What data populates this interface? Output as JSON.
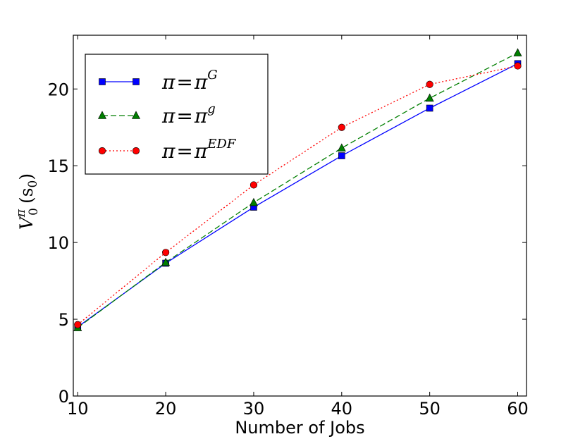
{
  "chart_data": {
    "type": "line",
    "title": "",
    "xlabel": "Number of Jobs",
    "ylabel": {
      "base": "V",
      "sup": "π",
      "sub": "0",
      "arg": "(s",
      "arg_sub": "0",
      "close": ")"
    },
    "xlim": [
      9.5,
      61
    ],
    "ylim": [
      0,
      23.5
    ],
    "x_ticks": [
      10,
      20,
      30,
      40,
      50,
      60
    ],
    "y_ticks": [
      0,
      5,
      10,
      15,
      20
    ],
    "x_tick_labels": [
      "10",
      "20",
      "30",
      "40",
      "50",
      "60"
    ],
    "y_tick_labels": [
      "0",
      "5",
      "10",
      "15",
      "20"
    ],
    "grid": false,
    "legend_position": "top-left",
    "x": [
      10,
      20,
      30,
      40,
      50,
      60
    ],
    "series": [
      {
        "legend": {
          "lhs": "π",
          "eq": "=",
          "rhs": "π",
          "sup": "G"
        },
        "values": [
          4.5,
          8.65,
          12.3,
          15.65,
          18.75,
          21.65
        ],
        "color": "#0000ff",
        "line_style": "solid",
        "marker": "square"
      },
      {
        "legend": {
          "lhs": "π",
          "eq": "=",
          "rhs": "π",
          "sup": "g"
        },
        "values": [
          4.45,
          8.7,
          12.6,
          16.15,
          19.4,
          22.35
        ],
        "color": "#007f00",
        "line_style": "dashed",
        "marker": "triangle"
      },
      {
        "legend": {
          "lhs": "π",
          "eq": "=",
          "rhs": "π",
          "sup": "EDF"
        },
        "values": [
          4.65,
          9.35,
          13.75,
          17.5,
          20.3,
          21.5
        ],
        "color": "#ff0000",
        "line_style": "dotted",
        "marker": "circle"
      }
    ]
  }
}
